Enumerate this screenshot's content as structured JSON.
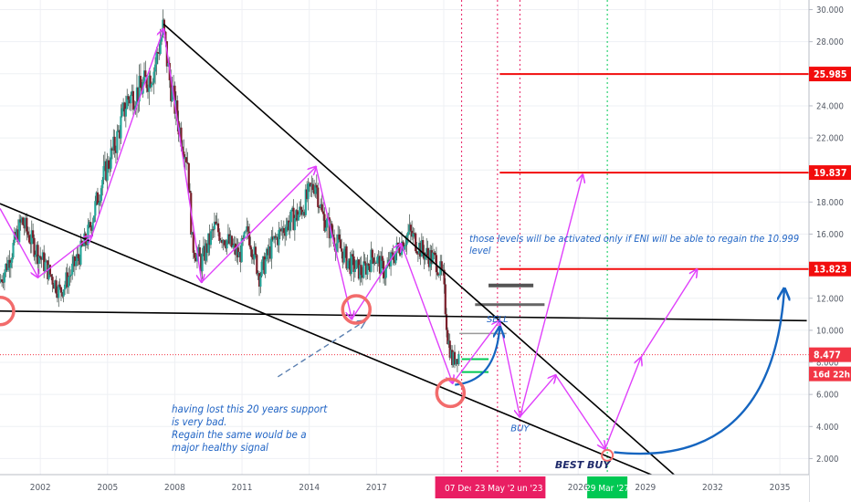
{
  "chart_data": {
    "type": "candlestick",
    "y_axis": {
      "ticks": [
        "2.000",
        "4.000",
        "6.000",
        "8.000",
        "10.000",
        "12.000",
        "14.000",
        "16.000",
        "18.000",
        "20.000",
        "22.000",
        "24.000",
        "26.000",
        "28.000",
        "30.000"
      ],
      "ylim": [
        1.0,
        30.6
      ]
    },
    "x_axis": {
      "ticks": [
        "2002",
        "2005",
        "2008",
        "2011",
        "2014",
        "2017",
        "20",
        "2026",
        "2029",
        "2032",
        "2035"
      ],
      "xlim": [
        2000.2,
        2036.3
      ]
    },
    "price_path": [
      [
        2000.2,
        13.0
      ],
      [
        2000.6,
        14.3
      ],
      [
        2001.2,
        16.8
      ],
      [
        2001.7,
        15.4
      ],
      [
        2002.3,
        13.9
      ],
      [
        2002.9,
        12.4
      ],
      [
        2003.4,
        13.6
      ],
      [
        2004.1,
        15.7
      ],
      [
        2004.8,
        19.4
      ],
      [
        2005.4,
        21.7
      ],
      [
        2005.9,
        24.4
      ],
      [
        2006.5,
        25.0
      ],
      [
        2007.1,
        26.3
      ],
      [
        2007.5,
        28.8
      ],
      [
        2007.8,
        25.6
      ],
      [
        2008.2,
        22.8
      ],
      [
        2008.6,
        20.6
      ],
      [
        2008.8,
        15.4
      ],
      [
        2009.2,
        14.2
      ],
      [
        2009.8,
        16.4
      ],
      [
        2010.3,
        15.7
      ],
      [
        2010.9,
        14.6
      ],
      [
        2011.3,
        16.2
      ],
      [
        2011.8,
        13.4
      ],
      [
        2012.4,
        15.4
      ],
      [
        2013.0,
        16.6
      ],
      [
        2013.6,
        17.3
      ],
      [
        2014.3,
        19.3
      ],
      [
        2014.6,
        17.2
      ],
      [
        2015.2,
        15.6
      ],
      [
        2015.8,
        14.2
      ],
      [
        2016.4,
        13.6
      ],
      [
        2016.9,
        14.7
      ],
      [
        2017.4,
        13.6
      ],
      [
        2018.1,
        15.4
      ],
      [
        2018.5,
        16.1
      ],
      [
        2019.1,
        14.9
      ],
      [
        2019.7,
        14.3
      ],
      [
        2020.0,
        13.2
      ],
      [
        2020.2,
        9.6
      ],
      [
        2020.4,
        8.1
      ],
      [
        2020.7,
        8.5
      ]
    ],
    "horizontal_levels": [
      {
        "label": "25.985",
        "value": 25.985,
        "color": "#f20d0d"
      },
      {
        "label": "19.837",
        "value": 19.837,
        "color": "#f20d0d"
      },
      {
        "label": "13.823",
        "value": 13.823,
        "color": "#f20d0d"
      }
    ],
    "current_price": {
      "label": "8.477",
      "value": 8.477,
      "color": "#f23645"
    },
    "countdown": {
      "label": "16d 22h",
      "color": "#f23645"
    },
    "vertical_markers": [
      {
        "x": 2020.8,
        "label": "07 Dec '",
        "color": "#e91e63"
      },
      {
        "x": 2022.4,
        "label": "23 May '22",
        "color": "#e91e63"
      },
      {
        "x": 2023.4,
        "label": "un '23",
        "color": "#e91e63"
      },
      {
        "x": 2027.3,
        "label": "29 Mar '27",
        "color": "#00c853"
      }
    ],
    "trendlines": [
      {
        "from": [
          2000.2,
          17.9
        ],
        "to": [
          2029.6,
          0.8
        ],
        "color": "#000000"
      },
      {
        "from": [
          2007.5,
          29.1
        ],
        "to": [
          2030.6,
          0.6
        ],
        "color": "#000000"
      },
      {
        "from": [
          2000.2,
          11.2
        ],
        "to": [
          2036.2,
          10.6
        ],
        "color": "#000000"
      }
    ],
    "zigzag": [
      [
        2000.2,
        17.6
      ],
      [
        2001.9,
        13.3
      ],
      [
        2004.3,
        15.9
      ],
      [
        2007.5,
        28.8
      ],
      [
        2009.2,
        13.0
      ],
      [
        2014.3,
        20.2
      ],
      [
        2015.9,
        10.7
      ],
      [
        2018.1,
        15.4
      ],
      [
        2020.4,
        6.7
      ],
      [
        2022.5,
        10.6
      ],
      [
        2023.4,
        4.6
      ],
      [
        2025.0,
        7.2
      ],
      [
        2027.2,
        2.6
      ],
      [
        2028.8,
        8.3
      ],
      [
        2031.3,
        13.8
      ]
    ],
    "zigzag_targets": [
      {
        "from": [
          2023.4,
          4.6
        ],
        "to": [
          2026.2,
          19.7
        ]
      }
    ],
    "note_arrow": {
      "from": [
        2012.6,
        7.1
      ],
      "to": [
        2016.5,
        10.6
      ]
    },
    "circles": [
      [
        2000.2,
        11.2
      ],
      [
        2016.1,
        11.3
      ],
      [
        2020.3,
        6.1
      ],
      [
        2027.3,
        2.2
      ]
    ],
    "annotations": [
      {
        "text": "SELL",
        "x": 2022.4,
        "y": 10.5,
        "color": "#1f63c4"
      },
      {
        "text": "BUY",
        "x": 2023.4,
        "y": 3.7,
        "color": "#1f63c4"
      },
      {
        "text": "BEST BUY",
        "x": 2026.2,
        "y": 1.4,
        "color": "#1f2a6b"
      }
    ]
  },
  "notes": {
    "top": "those levels will be activated only if ENI will be able to regain the 10.999\nlevel",
    "bottom": "having lost this 20 years support\nis very bad.\nRegain the same would be a\nmajor healthy signal"
  }
}
